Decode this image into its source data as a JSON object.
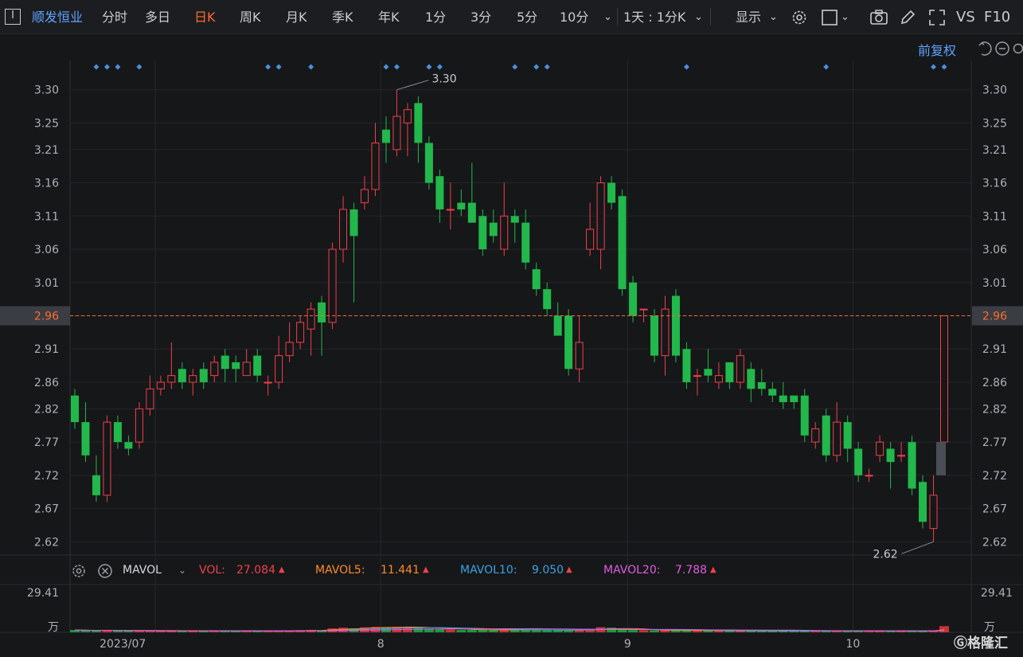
{
  "toolbar": {
    "stock_name": "顺发恒业",
    "periods": [
      "分时",
      "多日",
      "日K",
      "周K",
      "月K",
      "季K",
      "年K",
      "1分",
      "3分",
      "5分",
      "10分"
    ],
    "active_period": "日K",
    "interval_select": "1天 : 1分K",
    "display_label": "显示",
    "vs_label": "VS",
    "f10_label": "F10"
  },
  "adjust_label": "前复权",
  "price_axis": {
    "ticks": [
      "3.30",
      "3.25",
      "3.21",
      "3.16",
      "3.11",
      "3.06",
      "3.01",
      "2.96",
      "2.91",
      "2.86",
      "2.82",
      "2.77",
      "2.72",
      "2.67",
      "2.62"
    ],
    "current_price": "2.96",
    "high_label": "3.30",
    "low_label": "2.62"
  },
  "volume_axis": {
    "max": "29.41",
    "unit": "万"
  },
  "date_labels": [
    "2023/07",
    "8",
    "9",
    "10"
  ],
  "indicator": {
    "name": "MAVOL",
    "vol_label": "VOL:",
    "vol_value": "27.084",
    "ma5_label": "MAVOL5:",
    "ma5_value": "11.441",
    "ma10_label": "MAVOL10:",
    "ma10_value": "9.050",
    "ma20_label": "MAVOL20:",
    "ma20_value": "7.788"
  },
  "colors": {
    "up": "#f0414a",
    "down": "#22b84b",
    "ma5": "#ff8a2a",
    "ma10": "#3aa3e6",
    "ma20": "#e05ce0",
    "accent": "#ff6b2e"
  },
  "chart_data": {
    "type": "candlestick",
    "ylim": [
      2.6,
      3.32
    ],
    "candles": [
      [
        2.84,
        2.8,
        2.85,
        2.79
      ],
      [
        2.8,
        2.75,
        2.83,
        2.74
      ],
      [
        2.72,
        2.69,
        2.75,
        2.68
      ],
      [
        2.69,
        2.8,
        2.81,
        2.68
      ],
      [
        2.8,
        2.77,
        2.81,
        2.76
      ],
      [
        2.77,
        2.76,
        2.78,
        2.75
      ],
      [
        2.77,
        2.82,
        2.83,
        2.76
      ],
      [
        2.82,
        2.85,
        2.87,
        2.81
      ],
      [
        2.85,
        2.86,
        2.87,
        2.84
      ],
      [
        2.86,
        2.87,
        2.92,
        2.85
      ],
      [
        2.88,
        2.86,
        2.89,
        2.85
      ],
      [
        2.86,
        2.87,
        2.88,
        2.84
      ],
      [
        2.88,
        2.86,
        2.89,
        2.85
      ],
      [
        2.87,
        2.89,
        2.9,
        2.86
      ],
      [
        2.9,
        2.88,
        2.91,
        2.86
      ],
      [
        2.89,
        2.88,
        2.9,
        2.86
      ],
      [
        2.87,
        2.89,
        2.91,
        2.87
      ],
      [
        2.9,
        2.87,
        2.91,
        2.86
      ],
      [
        2.86,
        2.86,
        2.87,
        2.84
      ],
      [
        2.86,
        2.9,
        2.93,
        2.85
      ],
      [
        2.9,
        2.92,
        2.95,
        2.89
      ],
      [
        2.92,
        2.95,
        2.96,
        2.91
      ],
      [
        2.94,
        2.97,
        2.98,
        2.9
      ],
      [
        2.98,
        2.95,
        2.99,
        2.9
      ],
      [
        2.95,
        3.06,
        3.07,
        2.94
      ],
      [
        3.06,
        3.12,
        3.14,
        3.04
      ],
      [
        3.12,
        3.08,
        3.13,
        2.98
      ],
      [
        3.13,
        3.15,
        3.17,
        3.12
      ],
      [
        3.15,
        3.22,
        3.25,
        3.14
      ],
      [
        3.24,
        3.22,
        3.26,
        3.19
      ],
      [
        3.21,
        3.26,
        3.3,
        3.2
      ],
      [
        3.25,
        3.27,
        3.28,
        3.2
      ],
      [
        3.28,
        3.22,
        3.29,
        3.19
      ],
      [
        3.22,
        3.16,
        3.23,
        3.15
      ],
      [
        3.17,
        3.12,
        3.18,
        3.1
      ],
      [
        3.12,
        3.12,
        3.16,
        3.09
      ],
      [
        3.13,
        3.12,
        3.15,
        3.11
      ],
      [
        3.13,
        3.1,
        3.19,
        3.1
      ],
      [
        3.11,
        3.06,
        3.12,
        3.05
      ],
      [
        3.1,
        3.08,
        3.12,
        3.07
      ],
      [
        3.06,
        3.11,
        3.16,
        3.05
      ],
      [
        3.11,
        3.1,
        3.12,
        3.07
      ],
      [
        3.1,
        3.04,
        3.12,
        3.03
      ],
      [
        3.03,
        3.0,
        3.04,
        2.99
      ],
      [
        3.0,
        2.97,
        3.01,
        2.96
      ],
      [
        2.96,
        2.93,
        2.98,
        2.93
      ],
      [
        2.96,
        2.88,
        2.97,
        2.87
      ],
      [
        2.88,
        2.92,
        2.96,
        2.86
      ],
      [
        3.06,
        3.09,
        3.13,
        3.05
      ],
      [
        3.06,
        3.16,
        3.17,
        3.03
      ],
      [
        3.16,
        3.13,
        3.17,
        3.12
      ],
      [
        3.14,
        3.0,
        3.15,
        2.99
      ],
      [
        3.01,
        2.96,
        3.02,
        2.95
      ],
      [
        2.97,
        2.97,
        2.97,
        2.95
      ],
      [
        2.96,
        2.9,
        2.97,
        2.89
      ],
      [
        2.9,
        2.97,
        2.99,
        2.87
      ],
      [
        2.99,
        2.9,
        3.0,
        2.89
      ],
      [
        2.91,
        2.86,
        2.92,
        2.85
      ],
      [
        2.87,
        2.87,
        2.88,
        2.84
      ],
      [
        2.88,
        2.87,
        2.91,
        2.86
      ],
      [
        2.86,
        2.87,
        2.89,
        2.85
      ],
      [
        2.89,
        2.86,
        2.89,
        2.85
      ],
      [
        2.86,
        2.9,
        2.91,
        2.85
      ],
      [
        2.88,
        2.85,
        2.89,
        2.83
      ],
      [
        2.86,
        2.85,
        2.88,
        2.84
      ],
      [
        2.85,
        2.84,
        2.86,
        2.83
      ],
      [
        2.84,
        2.83,
        2.86,
        2.82
      ],
      [
        2.84,
        2.83,
        2.84,
        2.82
      ],
      [
        2.84,
        2.78,
        2.85,
        2.77
      ],
      [
        2.77,
        2.79,
        2.8,
        2.76
      ],
      [
        2.81,
        2.75,
        2.82,
        2.74
      ],
      [
        2.75,
        2.8,
        2.83,
        2.74
      ],
      [
        2.8,
        2.76,
        2.81,
        2.74
      ],
      [
        2.76,
        2.72,
        2.77,
        2.71
      ],
      [
        2.72,
        2.72,
        2.73,
        2.71
      ],
      [
        2.75,
        2.77,
        2.78,
        2.74
      ],
      [
        2.76,
        2.74,
        2.77,
        2.7
      ],
      [
        2.75,
        2.75,
        2.77,
        2.74
      ],
      [
        2.77,
        2.7,
        2.78,
        2.69
      ],
      [
        2.71,
        2.65,
        2.72,
        2.64
      ],
      [
        2.64,
        2.69,
        2.72,
        2.62
      ],
      [
        2.77,
        2.96,
        2.96,
        2.76
      ]
    ],
    "volumes": [
      1.5,
      1.2,
      1.0,
      1.4,
      1.0,
      0.8,
      0.9,
      1.1,
      0.9,
      1.0,
      0.8,
      0.9,
      0.8,
      1.0,
      0.9,
      0.8,
      0.8,
      0.9,
      0.7,
      0.9,
      1.2,
      1.4,
      1.5,
      1.3,
      2.5,
      3.0,
      2.6,
      3.2,
      3.5,
      3.4,
      3.6,
      3.2,
      3.0,
      2.5,
      2.2,
      1.8,
      1.5,
      1.6,
      1.5,
      1.4,
      1.8,
      1.6,
      1.6,
      1.5,
      1.4,
      1.3,
      1.2,
      1.6,
      2.2,
      3.3,
      3.0,
      1.8,
      1.5,
      1.3,
      1.2,
      1.4,
      1.3,
      1.2,
      1.0,
      1.0,
      1.0,
      0.9,
      1.1,
      0.9,
      0.9,
      0.9,
      0.8,
      0.8,
      1.0,
      0.9,
      1.0,
      1.0,
      0.9,
      1.0,
      0.8,
      0.9,
      0.9,
      0.8,
      0.9,
      1.0,
      1.2,
      4.0
    ]
  }
}
